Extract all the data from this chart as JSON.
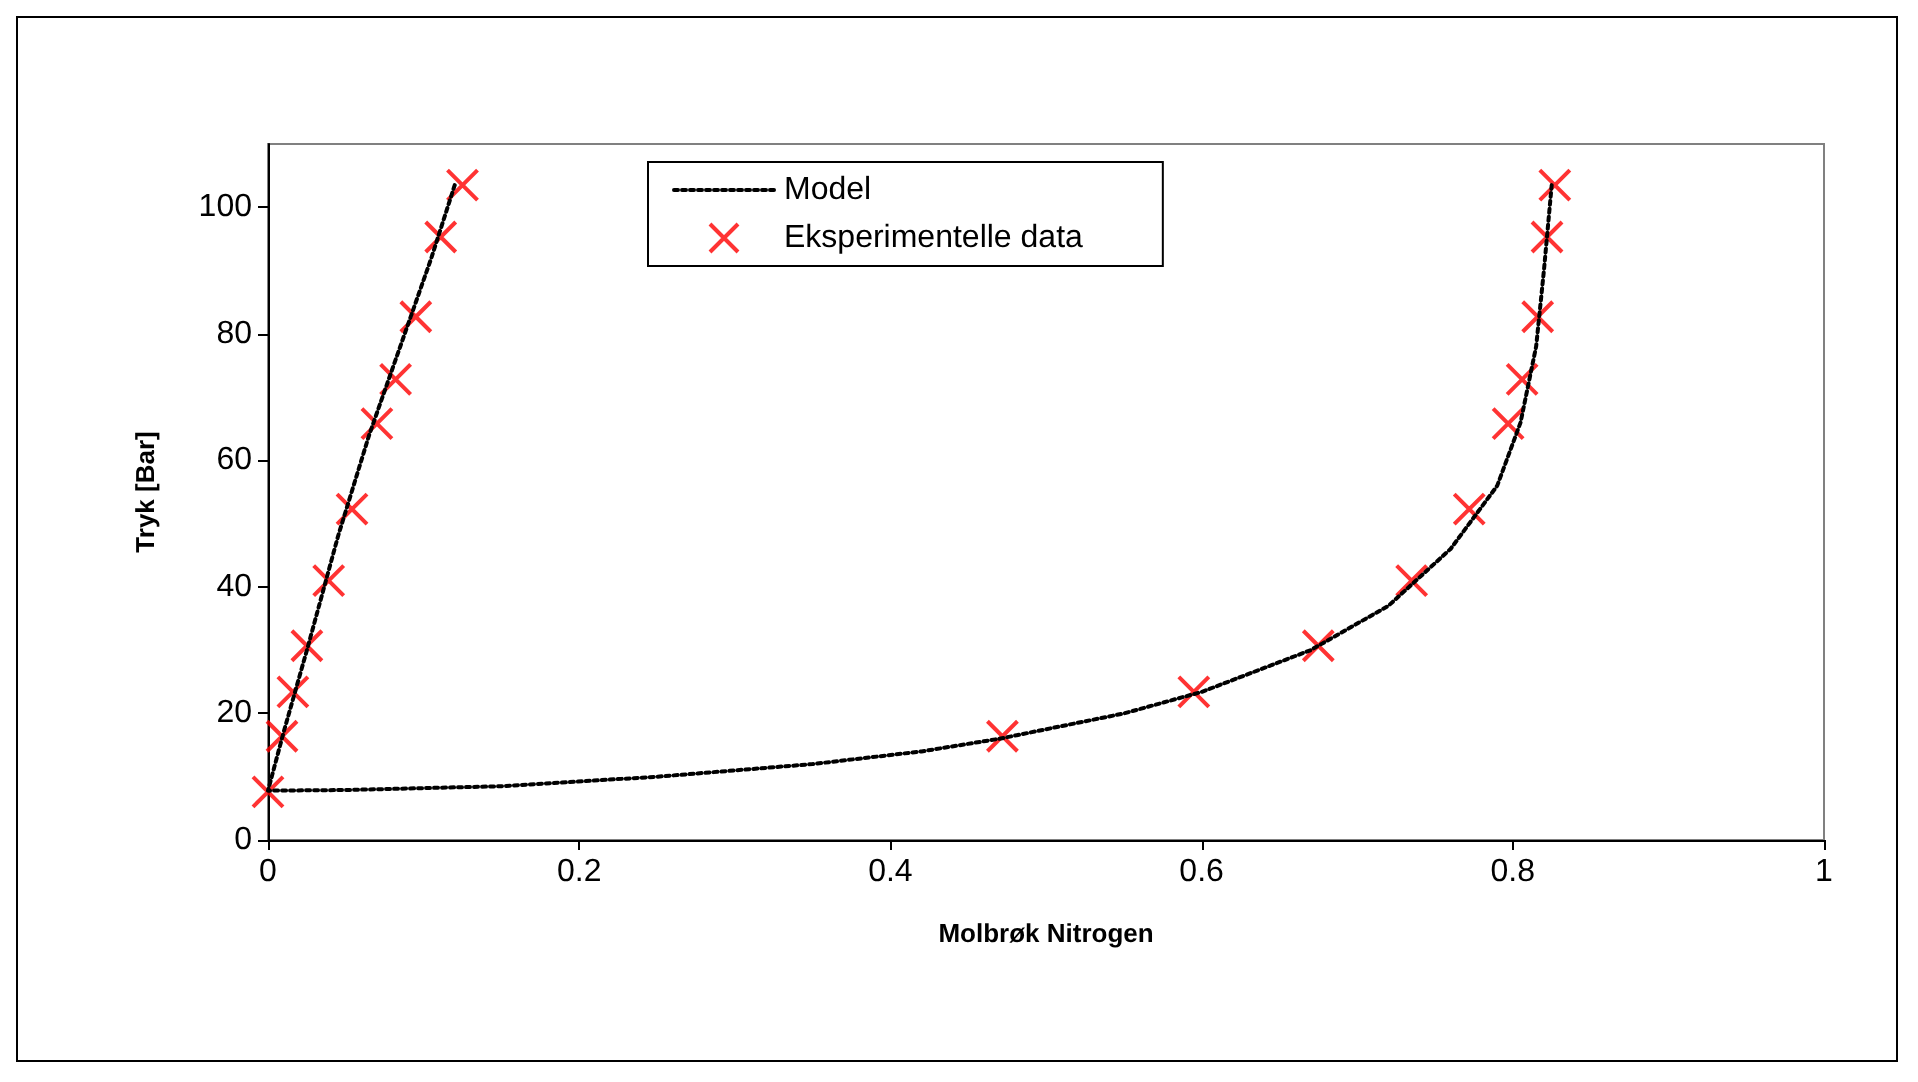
{
  "chart_data": {
    "type": "line",
    "xlabel": "Molbrøk Nitrogen",
    "ylabel": "Tryk [Bar]",
    "xlim": [
      0,
      1
    ],
    "xticks": [
      0,
      0.2,
      0.4,
      0.6,
      0.8,
      1
    ],
    "ylim": [
      0,
      110
    ],
    "yticks": [
      0,
      20,
      40,
      60,
      80,
      100
    ],
    "grid": false,
    "legend": "top",
    "series": [
      {
        "name": "Model",
        "color": "#000000",
        "marker": "none",
        "line_style": "dotted",
        "x": [
          0.12,
          0.105,
          0.085,
          0.065,
          0.045,
          0.025,
          0.01,
          0,
          0.05,
          0.15,
          0.25,
          0.35,
          0.42,
          0.47,
          0.55,
          0.6,
          0.67,
          0.72,
          0.76,
          0.79,
          0.805,
          0.815,
          0.82,
          0.825
        ],
        "values": [
          103.5,
          92,
          78,
          64,
          48,
          30,
          17,
          7.8,
          7.9,
          8.5,
          10,
          12,
          14,
          16,
          20,
          23.4,
          30,
          37,
          46,
          56,
          66,
          78,
          90,
          103.5
        ]
      },
      {
        "name": "Eksperimentelle data",
        "type": "scatter",
        "color": "#ff0000",
        "marker": "cross",
        "x": [
          0,
          0.009,
          0.016,
          0.025,
          0.039,
          0.054,
          0.07,
          0.082,
          0.095,
          0.111,
          0.125,
          0.472,
          0.595,
          0.675,
          0.735,
          0.772,
          0.797,
          0.806,
          0.816,
          0.822,
          0.827
        ],
        "values": [
          7.6,
          16.4,
          23.4,
          30.7,
          41,
          52.3,
          65.8,
          72.8,
          82.7,
          95.3,
          103.5,
          16.4,
          23.4,
          30.7,
          41,
          52.3,
          65.8,
          72.8,
          82.7,
          95.3,
          103.5
        ]
      }
    ]
  }
}
